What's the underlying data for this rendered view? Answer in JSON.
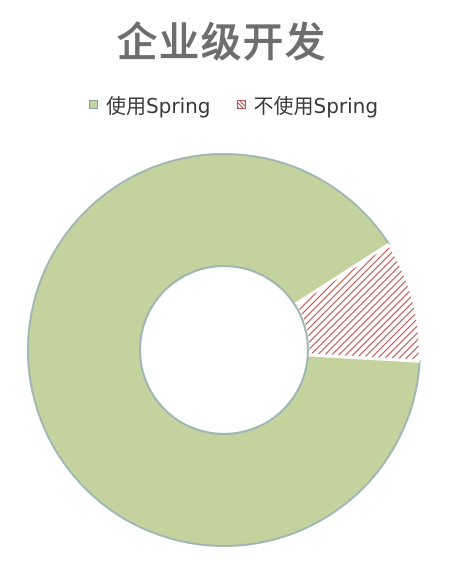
{
  "title": "企业级开发",
  "legend": {
    "position": "top",
    "items": [
      {
        "label": "使用Spring",
        "pattern": "solid"
      },
      {
        "label": "不使用Spring",
        "pattern": "hatch"
      }
    ]
  },
  "chart_data": {
    "type": "pie",
    "variant": "doughnut",
    "title": "企业级开发",
    "slices": [
      {
        "label": "使用Spring",
        "value": 90,
        "color": "#c4d29e",
        "pattern": "solid"
      },
      {
        "label": "不使用Spring",
        "value": 10,
        "color": "#c0504d",
        "pattern": "hatch"
      }
    ],
    "data_labels": false,
    "legend": "top"
  },
  "colors": {
    "title": "#6e6e6e",
    "slice_border": "#9fb7b2",
    "background": "#ffffff"
  }
}
